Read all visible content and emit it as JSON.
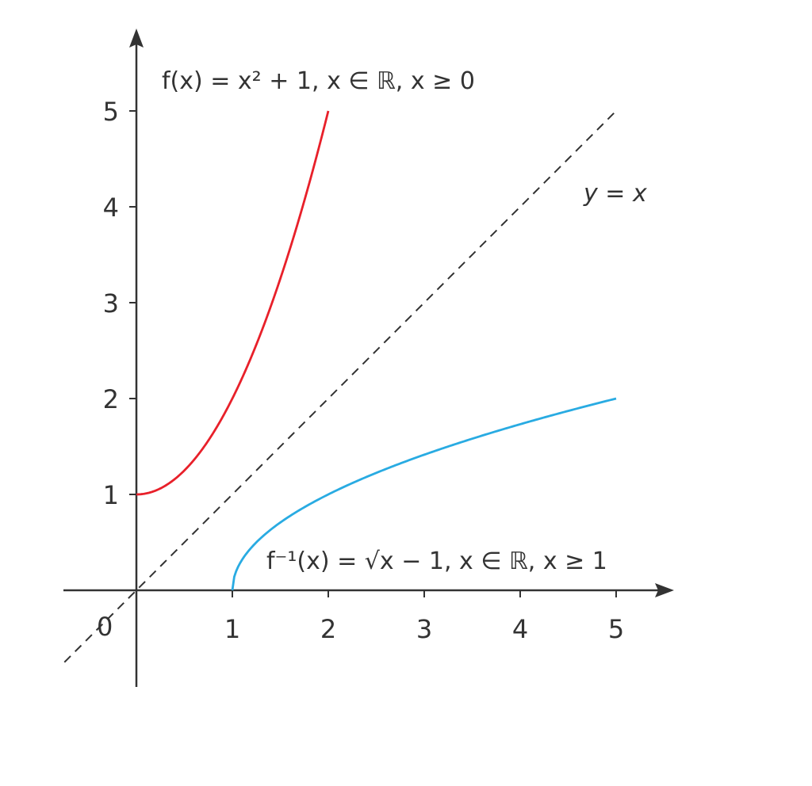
{
  "chart_data": {
    "type": "line",
    "title": "",
    "xlabel": "",
    "ylabel": "",
    "xlim": [
      -0.75,
      5.6
    ],
    "ylim": [
      -1,
      5.8
    ],
    "grid": false,
    "origin_label": "0",
    "x_ticks": [
      1,
      2,
      3,
      4,
      5
    ],
    "x_tick_labels": [
      "1",
      "2",
      "3",
      "4",
      "5"
    ],
    "y_ticks": [
      1,
      2,
      3,
      4,
      5
    ],
    "y_tick_labels": [
      "1",
      "2",
      "3",
      "4",
      "5"
    ],
    "series": [
      {
        "name": "f(x) = x² + 1, x ∈ ℝ, x ≥ 0",
        "function": "x^2 + 1",
        "domain": [
          0,
          2
        ],
        "color": "#e8202a",
        "style": "solid"
      },
      {
        "name": "f⁻¹(x) = √(x − 1), x ∈ ℝ, x ≥ 1",
        "function": "sqrt(x - 1)",
        "domain": [
          1,
          5
        ],
        "color": "#29abe2",
        "style": "solid"
      },
      {
        "name": "y = x",
        "function": "x",
        "domain": [
          -0.75,
          5
        ],
        "color": "#333333",
        "style": "dashed"
      }
    ],
    "annotations": {
      "f_label": "f(x) = x² + 1, x ∈ ℝ, x ≥ 0",
      "finv_label": "f⁻¹(x) = √x − 1, x ∈ ℝ, x ≥ 1",
      "identity_label": "y = x"
    }
  }
}
